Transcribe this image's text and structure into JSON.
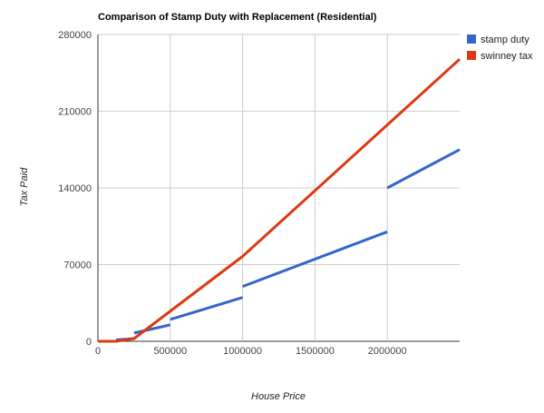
{
  "chart_data": {
    "type": "line",
    "title": "Comparison of Stamp Duty with Replacement (Residential)",
    "xlabel": "House Price",
    "ylabel": "Tax Paid",
    "xlim": [
      0,
      2500000
    ],
    "ylim": [
      0,
      280000
    ],
    "x_ticks": [
      {
        "value": 0,
        "label": "0"
      },
      {
        "value": 500000,
        "label": "500000"
      },
      {
        "value": 1000000,
        "label": "1000000"
      },
      {
        "value": 1500000,
        "label": "1500000"
      },
      {
        "value": 2000000,
        "label": "2000000"
      }
    ],
    "y_ticks": [
      {
        "value": 0,
        "label": "0"
      },
      {
        "value": 70000,
        "label": "70000"
      },
      {
        "value": 140000,
        "label": "140000"
      },
      {
        "value": 210000,
        "label": "210000"
      },
      {
        "value": 280000,
        "label": "280000"
      }
    ],
    "grid": true,
    "legend_position": "right",
    "series": [
      {
        "name": "stamp duty",
        "color": "#3366cc",
        "segments": [
          [
            [
              0,
              0
            ],
            [
              125000,
              0
            ]
          ],
          [
            [
              125000,
              1250
            ],
            [
              250000,
              2500
            ]
          ],
          [
            [
              250000,
              7500
            ],
            [
              500000,
              15000
            ]
          ],
          [
            [
              500000,
              20000
            ],
            [
              1000000,
              40000
            ]
          ],
          [
            [
              1000000,
              50000
            ],
            [
              2000000,
              100000
            ]
          ],
          [
            [
              2000000,
              140000
            ],
            [
              2500000,
              175000
            ]
          ]
        ]
      },
      {
        "name": "swinney tax",
        "color": "#dc3912",
        "segments": [
          [
            [
              0,
              0
            ],
            [
              125000,
              0
            ],
            [
              250000,
              2500
            ],
            [
              1000000,
              77500
            ],
            [
              2500000,
              257500
            ]
          ]
        ]
      }
    ]
  }
}
